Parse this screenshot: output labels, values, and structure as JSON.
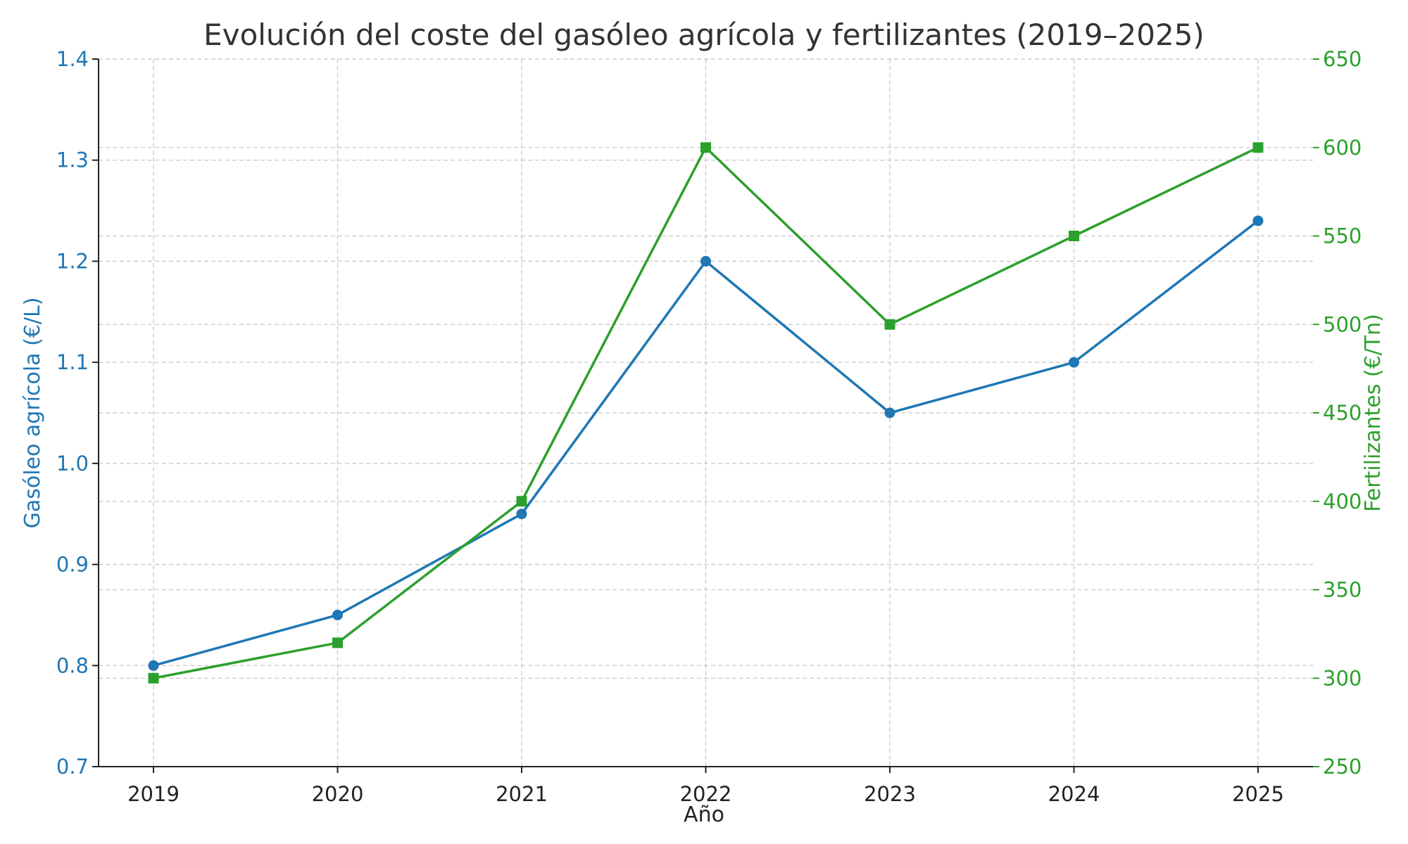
{
  "chart_data": {
    "type": "line",
    "title": "Evolución del coste del gasóleo agrícola y fertilizantes (2019–2025)",
    "xlabel": "Año",
    "ylabel_left": "Gasóleo agrícola (€/L)",
    "ylabel_right": "Fertilizantes (€/Tn)",
    "categories": [
      "2019",
      "2020",
      "2021",
      "2022",
      "2023",
      "2024",
      "2025"
    ],
    "y_left": {
      "range": [
        0.7,
        1.4
      ],
      "ticks": [
        "0.7",
        "0.8",
        "0.9",
        "1.0",
        "1.1",
        "1.2",
        "1.3",
        "1.4"
      ],
      "color": "#1f77b4"
    },
    "y_right": {
      "range": [
        250,
        650
      ],
      "ticks": [
        "250",
        "300",
        "350",
        "400",
        "450",
        "500",
        "550",
        "600",
        "650"
      ],
      "color": "#2ca02c"
    },
    "series": [
      {
        "axis": "left",
        "marker": "circle",
        "color": "#1f77b4",
        "values": [
          0.8,
          0.85,
          0.95,
          1.2,
          1.05,
          1.1,
          1.24
        ]
      },
      {
        "axis": "right",
        "marker": "square",
        "color": "#2ca02c",
        "values": [
          300,
          320,
          400,
          600,
          500,
          550,
          600
        ]
      }
    ],
    "grid": true,
    "legend": "none"
  }
}
